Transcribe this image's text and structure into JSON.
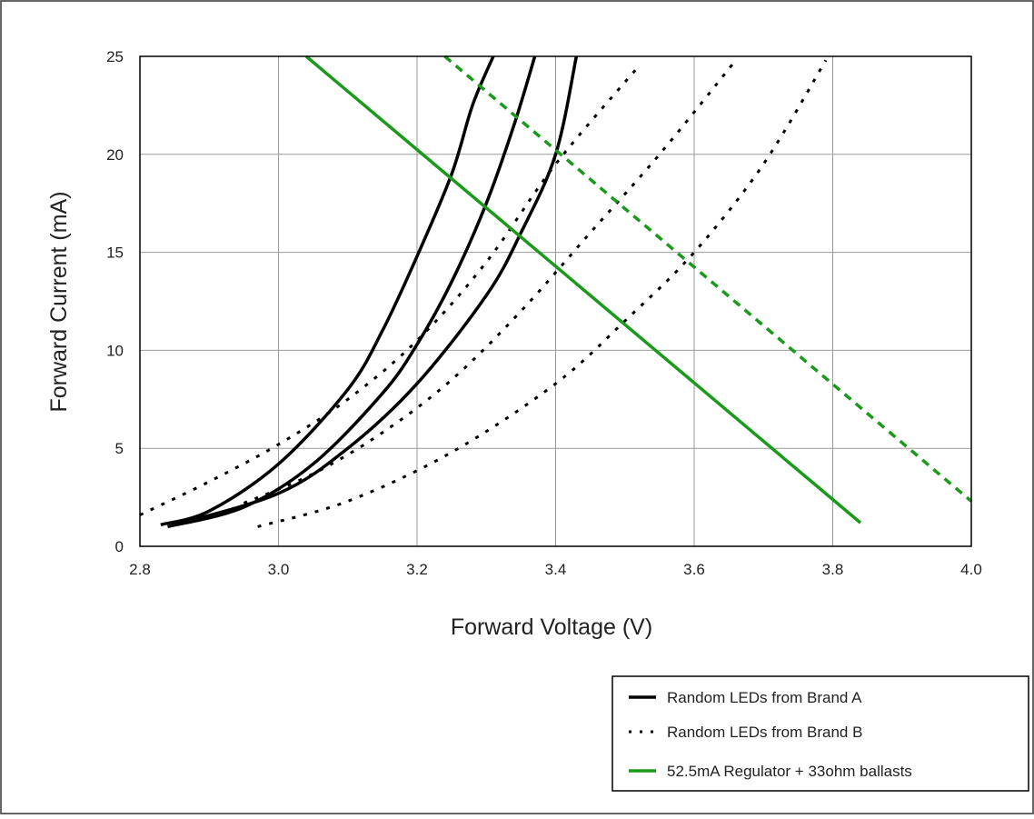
{
  "chart_data": {
    "type": "line",
    "title": "",
    "xlabel": "Forward Voltage (V)",
    "ylabel": "Forward Current (mA)",
    "xlim": [
      2.8,
      4.0
    ],
    "ylim": [
      0,
      25
    ],
    "xticks": [
      2.8,
      3.0,
      3.2,
      3.4,
      3.6,
      3.8,
      4.0
    ],
    "xtick_labels": [
      "2.8",
      "3.0",
      "3.2",
      "3.4",
      "3.6",
      "3.8",
      "4.0"
    ],
    "yticks": [
      0,
      5,
      10,
      15,
      20,
      25
    ],
    "ytick_labels": [
      "0",
      "5",
      "10",
      "15",
      "20",
      "25"
    ],
    "grid": true,
    "legend_position": "bottom-right",
    "legend": [
      {
        "label": "Random LEDs from Brand A",
        "style": "solid",
        "color": "#000000"
      },
      {
        "label": "Random LEDs from Brand B",
        "style": "dotted",
        "color": "#000000"
      },
      {
        "label": "52.5mA Regulator + 33ohm ballasts",
        "style": "solid",
        "color": "#1a9a1a"
      }
    ],
    "series": [
      {
        "group": "brand_a",
        "style": "solid",
        "color": "#000000",
        "points": [
          [
            2.83,
            1.1
          ],
          [
            2.9,
            1.8
          ],
          [
            3.0,
            4.2
          ],
          [
            3.1,
            8.0
          ],
          [
            3.15,
            11.0
          ],
          [
            3.2,
            14.8
          ],
          [
            3.25,
            19.0
          ],
          [
            3.28,
            22.5
          ],
          [
            3.31,
            25
          ]
        ]
      },
      {
        "group": "brand_a",
        "style": "solid",
        "color": "#000000",
        "points": [
          [
            2.84,
            1.0
          ],
          [
            2.95,
            2.0
          ],
          [
            3.05,
            4.2
          ],
          [
            3.15,
            7.8
          ],
          [
            3.2,
            10.3
          ],
          [
            3.25,
            13.5
          ],
          [
            3.3,
            17.5
          ],
          [
            3.34,
            21.5
          ],
          [
            3.37,
            25
          ]
        ]
      },
      {
        "group": "brand_a",
        "style": "solid",
        "color": "#000000",
        "points": [
          [
            2.85,
            1.1
          ],
          [
            3.0,
            2.7
          ],
          [
            3.1,
            5.0
          ],
          [
            3.2,
            8.3
          ],
          [
            3.3,
            12.8
          ],
          [
            3.35,
            16.0
          ],
          [
            3.4,
            20.0
          ],
          [
            3.43,
            25
          ]
        ]
      },
      {
        "group": "brand_b",
        "style": "dotted",
        "color": "#000000",
        "points": [
          [
            2.8,
            1.6
          ],
          [
            2.9,
            3.3
          ],
          [
            3.0,
            5.2
          ],
          [
            3.1,
            7.5
          ],
          [
            3.2,
            10.5
          ],
          [
            3.3,
            14.5
          ],
          [
            3.4,
            19.5
          ],
          [
            3.52,
            24.5
          ]
        ]
      },
      {
        "group": "brand_b",
        "style": "dotted",
        "color": "#000000",
        "points": [
          [
            2.95,
            2.2
          ],
          [
            3.05,
            3.7
          ],
          [
            3.15,
            5.8
          ],
          [
            3.25,
            8.5
          ],
          [
            3.35,
            12.0
          ],
          [
            3.45,
            16.0
          ],
          [
            3.55,
            20.0
          ],
          [
            3.66,
            24.8
          ]
        ]
      },
      {
        "group": "brand_b",
        "style": "dotted",
        "color": "#000000",
        "points": [
          [
            2.97,
            1.0
          ],
          [
            3.1,
            2.3
          ],
          [
            3.25,
            4.8
          ],
          [
            3.4,
            8.3
          ],
          [
            3.5,
            11.5
          ],
          [
            3.6,
            15.0
          ],
          [
            3.7,
            19.5
          ],
          [
            3.79,
            24.8
          ]
        ]
      },
      {
        "group": "regulator",
        "style": "solid",
        "color": "#1a9a1a",
        "points": [
          [
            3.04,
            25
          ],
          [
            3.84,
            1.2
          ]
        ]
      },
      {
        "group": "regulator",
        "style": "dashed",
        "color": "#1a9a1a",
        "points": [
          [
            3.24,
            25
          ],
          [
            4.0,
            2.3
          ]
        ]
      }
    ]
  }
}
